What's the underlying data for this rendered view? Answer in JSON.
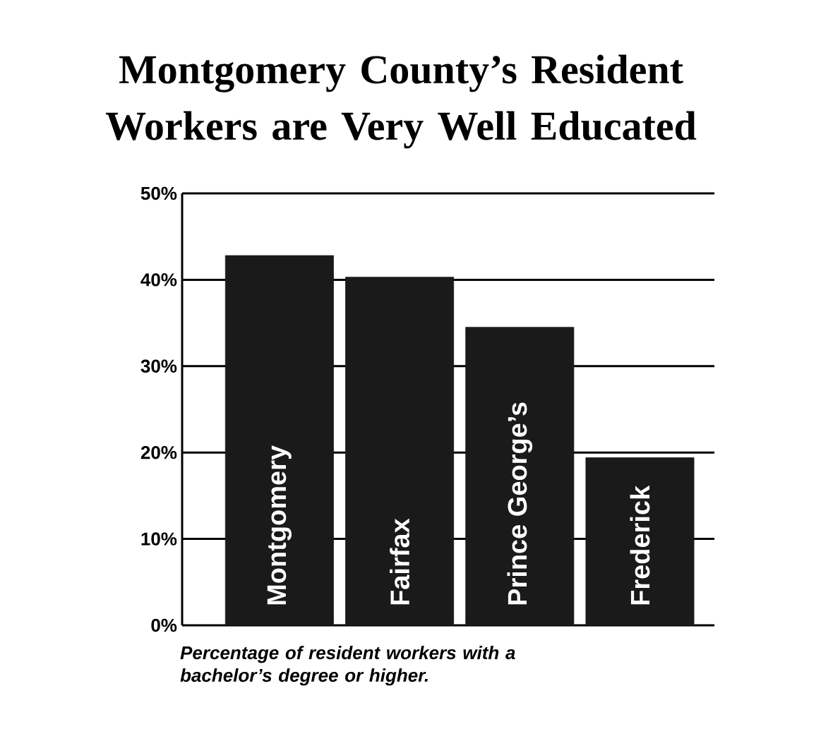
{
  "chart_data": {
    "type": "bar",
    "title": "Montgomery County’s Resident Workers are Very Well Educated",
    "categories": [
      "Montgomery",
      "Fairfax",
      "Prince George’s",
      "Frederick"
    ],
    "values": [
      42.8,
      40.3,
      34.5,
      19.4
    ],
    "color": "#1a1a1a",
    "ylim": [
      0,
      50
    ],
    "yticks": [
      {
        "value": 0,
        "label": "0%"
      },
      {
        "value": 10,
        "label": "10%"
      },
      {
        "value": 20,
        "label": "20%"
      },
      {
        "value": 30,
        "label": "30%"
      },
      {
        "value": 40,
        "label": "40%"
      },
      {
        "value": 50,
        "label": "50%"
      }
    ],
    "grid": "y",
    "annotations": [
      "Percentage of resident workers with a bachelor’s degree or higher."
    ]
  }
}
